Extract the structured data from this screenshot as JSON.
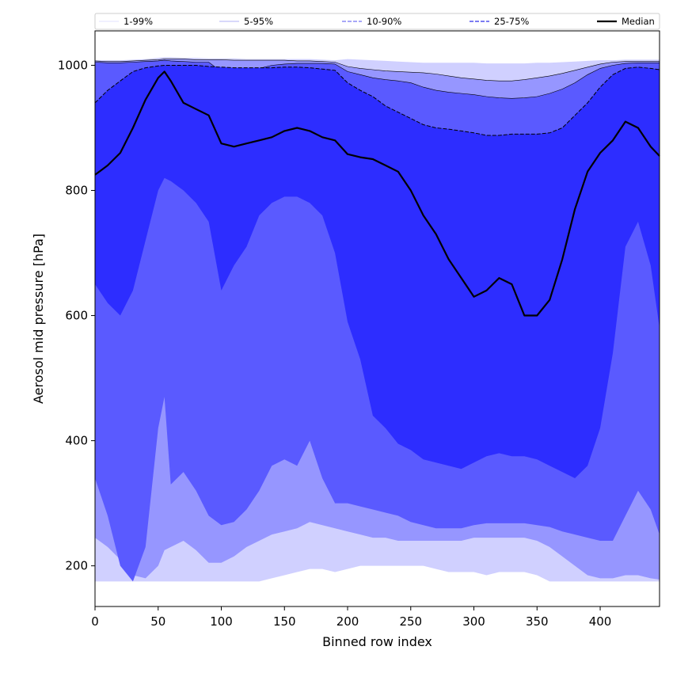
{
  "chart_data": {
    "type": "area",
    "xlabel": "Binned row index",
    "ylabel": "Aerosol mid pressure [hPa]",
    "xlim": [
      0,
      447
    ],
    "ylim": [
      135,
      1055
    ],
    "x_ticks": [
      0,
      50,
      100,
      150,
      200,
      250,
      300,
      350,
      400
    ],
    "y_ticks": [
      200,
      400,
      600,
      800,
      1000
    ],
    "grid": false,
    "legend_position": "top",
    "legend": [
      {
        "label": "1-99%",
        "style": "solid-thin",
        "color": "#e0e0ff"
      },
      {
        "label": "5-95%",
        "style": "solid-thin",
        "color": "#b0b0f5"
      },
      {
        "label": "10-90%",
        "style": "dashed",
        "color": "#8c8cf5"
      },
      {
        "label": "25-75%",
        "style": "dashed",
        "color": "#5050ee"
      },
      {
        "label": "Median",
        "style": "solid-thick",
        "color": "#000000"
      }
    ],
    "x": [
      0,
      10,
      20,
      30,
      40,
      50,
      55,
      60,
      70,
      80,
      90,
      100,
      110,
      120,
      130,
      140,
      150,
      160,
      170,
      180,
      190,
      200,
      210,
      220,
      230,
      240,
      250,
      260,
      270,
      280,
      290,
      300,
      310,
      320,
      330,
      340,
      350,
      360,
      370,
      380,
      390,
      400,
      410,
      420,
      430,
      440,
      447
    ],
    "bands": [
      {
        "name": "1-99%",
        "color": "#d0d0ff",
        "lower": [
          175,
          175,
          175,
          175,
          175,
          175,
          175,
          175,
          175,
          175,
          175,
          175,
          175,
          175,
          175,
          180,
          185,
          190,
          195,
          195,
          190,
          195,
          200,
          200,
          200,
          200,
          200,
          200,
          195,
          190,
          190,
          190,
          185,
          190,
          190,
          190,
          185,
          175,
          175,
          175,
          175,
          175,
          175,
          175,
          175,
          175,
          175
        ],
        "upper": [
          1008,
          1008,
          1008,
          1009,
          1010,
          1012,
          1013,
          1013,
          1012,
          1012,
          1011,
          1011,
          1011,
          1010,
          1010,
          1010,
          1010,
          1010,
          1010,
          1009,
          1008,
          1010,
          1009,
          1008,
          1007,
          1006,
          1005,
          1004,
          1004,
          1004,
          1004,
          1004,
          1003,
          1003,
          1003,
          1003,
          1004,
          1004,
          1005,
          1006,
          1007,
          1008,
          1008,
          1009,
          1009,
          1009,
          1009
        ]
      },
      {
        "name": "5-95%",
        "color": "#9696ff",
        "lower": [
          245,
          230,
          210,
          185,
          180,
          200,
          225,
          230,
          240,
          225,
          205,
          205,
          215,
          230,
          240,
          250,
          255,
          260,
          270,
          265,
          260,
          255,
          250,
          245,
          245,
          240,
          240,
          240,
          240,
          240,
          240,
          245,
          245,
          245,
          245,
          245,
          240,
          230,
          215,
          200,
          185,
          180,
          180,
          185,
          185,
          180,
          178
        ],
        "upper": [
          1007,
          1006,
          1006,
          1007,
          1008,
          1009,
          1010,
          1010,
          1010,
          1009,
          1009,
          1009,
          1008,
          1008,
          1008,
          1008,
          1008,
          1007,
          1007,
          1006,
          1005,
          998,
          995,
          993,
          991,
          990,
          989,
          988,
          986,
          983,
          980,
          978,
          976,
          975,
          975,
          977,
          980,
          983,
          987,
          992,
          997,
          1002,
          1005,
          1006,
          1006,
          1006,
          1006
        ]
      },
      {
        "name": "10-90%",
        "color": "#5a5aff",
        "lower": [
          340,
          280,
          200,
          175,
          230,
          420,
          470,
          330,
          350,
          320,
          280,
          265,
          270,
          290,
          320,
          360,
          370,
          360,
          400,
          340,
          300,
          300,
          295,
          290,
          285,
          280,
          270,
          265,
          260,
          260,
          260,
          265,
          268,
          268,
          268,
          268,
          265,
          262,
          255,
          250,
          245,
          240,
          240,
          280,
          320,
          290,
          250
        ],
        "upper": [
          1005,
          1004,
          1004,
          1005,
          1006,
          1007,
          1008,
          1007,
          1006,
          1005,
          1005,
          990,
          962,
          968,
          995,
          1000,
          1002,
          1003,
          1003,
          1003,
          1002,
          990,
          985,
          980,
          977,
          975,
          972,
          965,
          960,
          957,
          955,
          953,
          950,
          948,
          947,
          948,
          950,
          955,
          962,
          972,
          985,
          995,
          1000,
          1003,
          1004,
          1004,
          1004
        ]
      },
      {
        "name": "25-75%",
        "color": "#2d2dff",
        "lower": [
          650,
          620,
          600,
          640,
          720,
          800,
          820,
          815,
          800,
          780,
          750,
          640,
          680,
          710,
          760,
          780,
          790,
          790,
          780,
          760,
          700,
          590,
          530,
          440,
          420,
          395,
          385,
          370,
          365,
          360,
          355,
          365,
          375,
          380,
          375,
          375,
          370,
          360,
          350,
          340,
          360,
          420,
          540,
          710,
          750,
          680,
          580
        ],
        "upper": [
          940,
          960,
          975,
          990,
          996,
          999,
          1000,
          1000,
          1000,
          1000,
          998,
          997,
          996,
          996,
          996,
          996,
          997,
          997,
          996,
          994,
          992,
          972,
          960,
          950,
          935,
          925,
          915,
          905,
          900,
          898,
          895,
          892,
          888,
          888,
          890,
          890,
          890,
          892,
          900,
          920,
          940,
          965,
          985,
          995,
          997,
          995,
          993
        ]
      }
    ],
    "median": {
      "name": "Median",
      "color": "#000000",
      "y": [
        825,
        840,
        860,
        900,
        945,
        980,
        990,
        975,
        940,
        930,
        920,
        875,
        870,
        875,
        880,
        885,
        895,
        900,
        895,
        885,
        880,
        858,
        853,
        850,
        840,
        830,
        800,
        760,
        730,
        690,
        660,
        630,
        640,
        660,
        650,
        600,
        600,
        625,
        690,
        770,
        830,
        860,
        880,
        910,
        900,
        870,
        855
      ]
    }
  }
}
